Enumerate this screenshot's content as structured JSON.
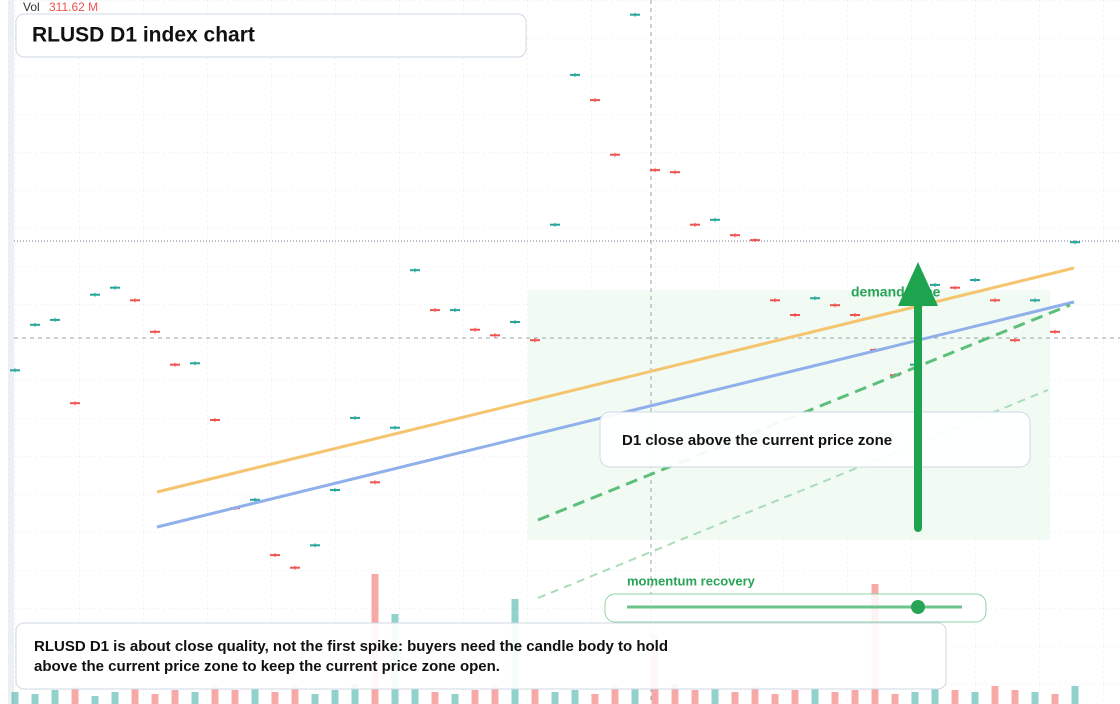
{
  "chart_data": {
    "type": "candlestick",
    "title": "RLUSD D1 index chart",
    "volume_label": "Vol",
    "volume_value": "311.62 M",
    "zone_label": "demand zone",
    "callout": "D1 close above the current price zone",
    "slider_label": "momentum recovery",
    "caption": [
      "RLUSD D1 is about close quality, not the first spike: buyers need the candle body to hold",
      "above the current price zone to keep the current price zone open."
    ],
    "ylim": [
      0,
      100
    ],
    "values": [
      47.1,
      53.6,
      54.3,
      42.4,
      57.9,
      58.9,
      57.1,
      52.6,
      47.9,
      48.1,
      40,
      27.4,
      28.6,
      20.7,
      18.9,
      22.1,
      30,
      40.3,
      31.1,
      38.9,
      61.4,
      55.7,
      55.7,
      52.9,
      52.1,
      54,
      51.4,
      67.9,
      89.3,
      85.7,
      77.9,
      97.9,
      75.7,
      75.4,
      67.9,
      68.6,
      66.4,
      65.7,
      57.1,
      55,
      57.4,
      56.4,
      55,
      50,
      46.4,
      47.9,
      59.3,
      58.9,
      60,
      57.1,
      51.4,
      57.1,
      52.6,
      65.4
    ],
    "volume_ylim": [
      0,
      140
    ],
    "volumes": [
      12,
      10,
      14,
      18,
      8,
      12,
      16,
      10,
      14,
      12,
      18,
      14,
      16,
      12,
      18,
      10,
      14,
      20,
      130,
      90,
      16,
      12,
      10,
      14,
      18,
      105,
      16,
      12,
      14,
      10,
      18,
      16,
      70,
      20,
      14,
      16,
      12,
      18,
      10,
      14,
      16,
      12,
      14,
      120,
      10,
      12,
      16,
      14,
      12,
      18,
      14,
      12,
      10,
      18
    ],
    "up_color": "#26a69a",
    "down_color": "#ef5350"
  }
}
